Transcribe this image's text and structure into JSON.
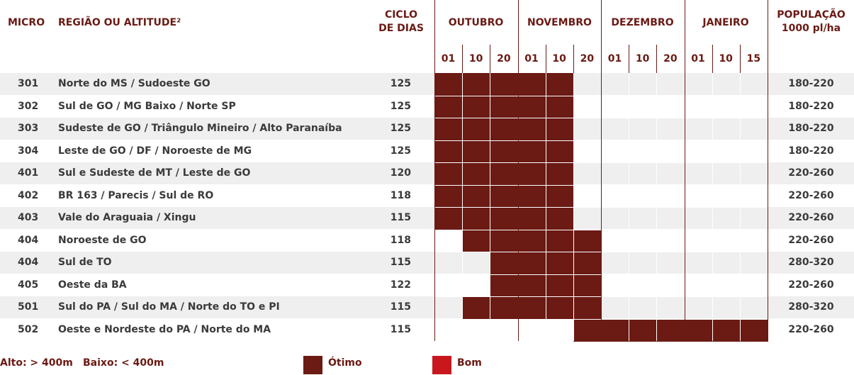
{
  "header": {
    "micro": "MICRO",
    "regiao": "REGIÃO OU ALTITUDE²",
    "ciclo_l1": "CICLO",
    "ciclo_l2": "DE DIAS",
    "populacao_l1": "POPULAÇÃO",
    "populacao_l2": "1000 pl/ha",
    "months": [
      "OUTUBRO",
      "NOVEMBRO",
      "DEZEMBRO",
      "JANEIRO"
    ],
    "days": [
      "01",
      "10",
      "20",
      "01",
      "10",
      "20",
      "01",
      "10",
      "20",
      "01",
      "10",
      "15"
    ]
  },
  "rows": [
    {
      "micro": "301",
      "regiao": "Norte do MS / Sudoeste GO",
      "ciclo": "125",
      "populacao": "180-220",
      "otimo": [
        0,
        1,
        2,
        3,
        4
      ]
    },
    {
      "micro": "302",
      "regiao": "Sul de GO / MG Baixo / Norte SP",
      "ciclo": "125",
      "populacao": "180-220",
      "otimo": [
        0,
        1,
        2,
        3,
        4
      ]
    },
    {
      "micro": "303",
      "regiao": "Sudeste de GO / Triângulo Mineiro / Alto Paranaíba",
      "ciclo": "125",
      "populacao": "180-220",
      "otimo": [
        0,
        1,
        2,
        3,
        4
      ]
    },
    {
      "micro": "304",
      "regiao": "Leste de GO / DF / Noroeste de MG",
      "ciclo": "125",
      "populacao": "180-220",
      "otimo": [
        0,
        1,
        2,
        3,
        4
      ]
    },
    {
      "micro": "401",
      "regiao": "Sul e Sudeste de MT / Leste de GO",
      "ciclo": "120",
      "populacao": "220-260",
      "otimo": [
        0,
        1,
        2,
        3,
        4
      ]
    },
    {
      "micro": "402",
      "regiao": "BR 163 / Parecis / Sul de RO",
      "ciclo": "118",
      "populacao": "220-260",
      "otimo": [
        0,
        1,
        2,
        3,
        4
      ]
    },
    {
      "micro": "403",
      "regiao": "Vale do Araguaia / Xingu",
      "ciclo": "115",
      "populacao": "220-260",
      "otimo": [
        0,
        1,
        2,
        3,
        4
      ]
    },
    {
      "micro": "404",
      "regiao": "Noroeste de GO",
      "ciclo": "118",
      "populacao": "220-260",
      "otimo": [
        1,
        2,
        3,
        4,
        5
      ]
    },
    {
      "micro": "404",
      "regiao": "Sul de TO",
      "ciclo": "115",
      "populacao": "280-320",
      "otimo": [
        2,
        3,
        4,
        5
      ]
    },
    {
      "micro": "405",
      "regiao": "Oeste da BA",
      "ciclo": "122",
      "populacao": "220-260",
      "otimo": [
        2,
        3,
        4,
        5
      ]
    },
    {
      "micro": "501",
      "regiao": "Sul do PA / Sul do MA / Norte do TO e PI",
      "ciclo": "115",
      "populacao": "280-320",
      "otimo": [
        1,
        2,
        3,
        4,
        5
      ]
    },
    {
      "micro": "502",
      "regiao": "Oeste e Nordeste do PA / Norte do MA",
      "ciclo": "115",
      "populacao": "220-260",
      "otimo": [
        5,
        6,
        7,
        8,
        9,
        10,
        11
      ]
    }
  ],
  "legend": {
    "altitude": "Alto: > 400m",
    "baixo": "Baixo: < 400m",
    "otimo_label": "Ótimo",
    "bom_label": "Bom",
    "otimo_color": "#6b1a14",
    "bom_color": "#c8181e"
  }
}
